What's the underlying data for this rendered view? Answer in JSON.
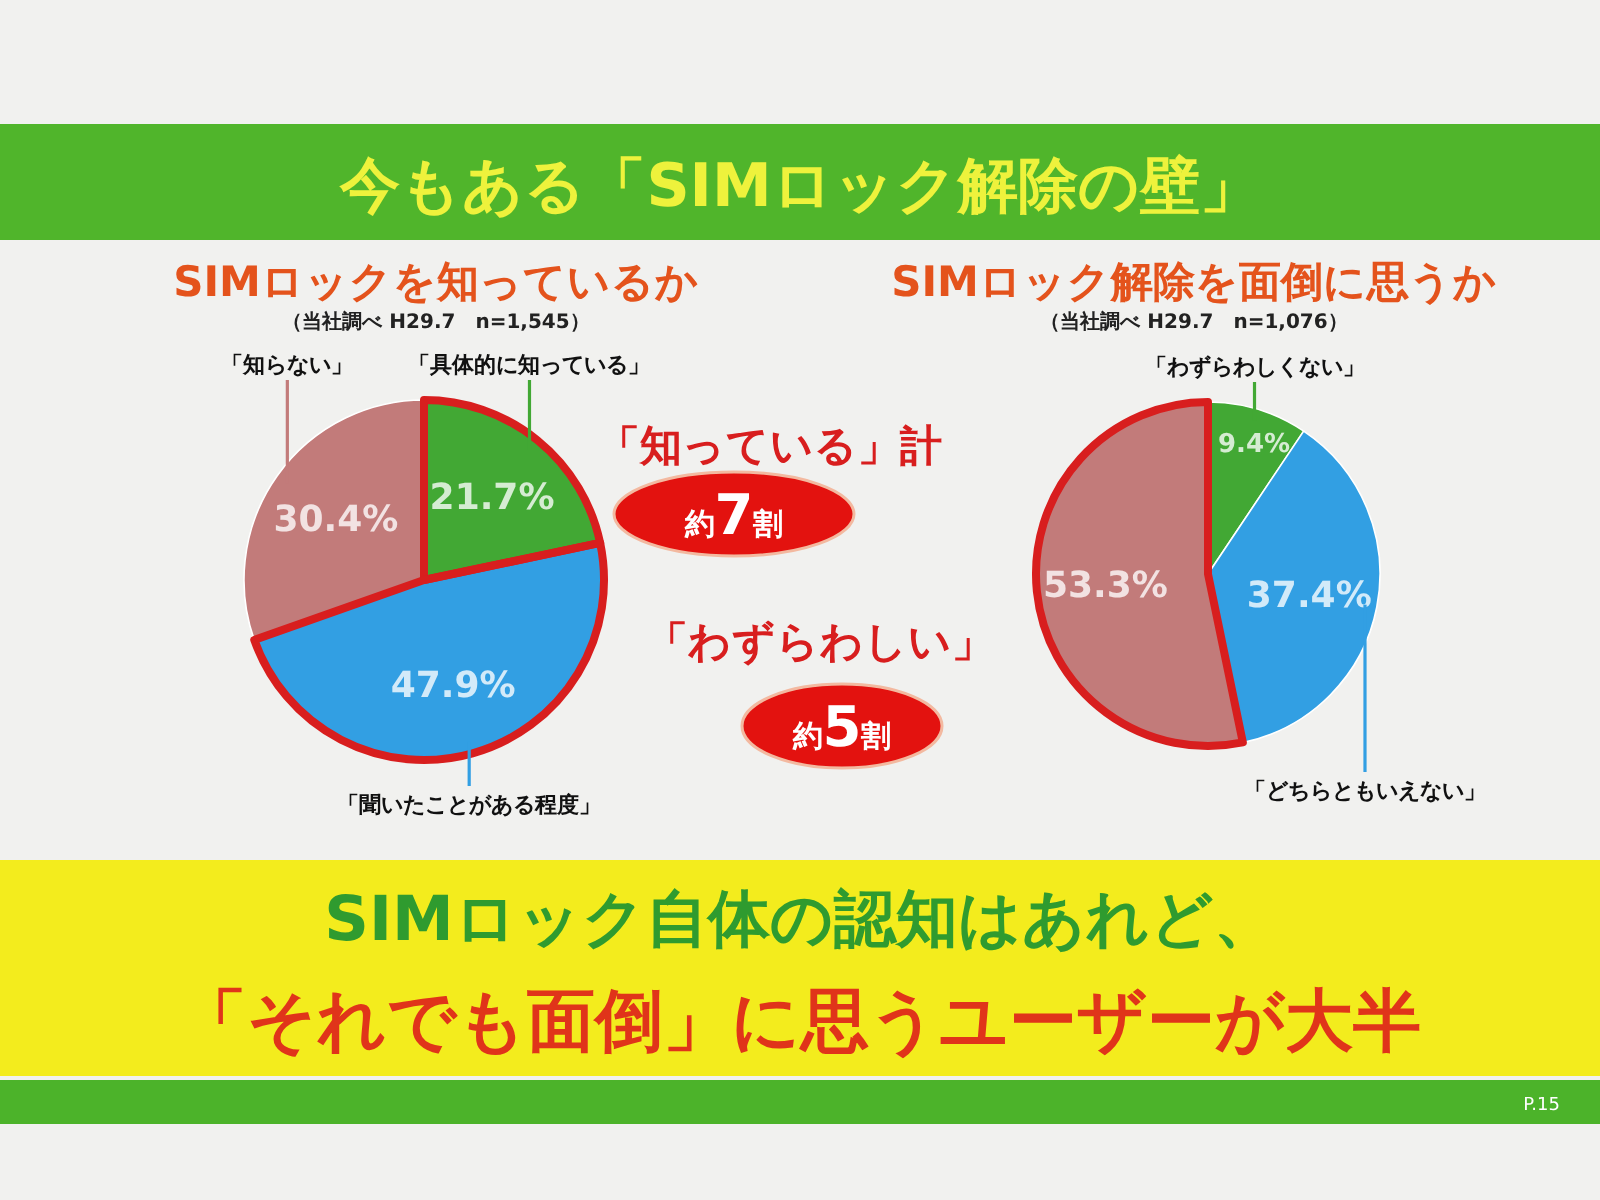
{
  "chart_data": [
    {
      "type": "other",
      "title": "今もある「SIMロック解除の壁」"
    },
    {
      "type": "pie",
      "title": "SIMロックを知っているか",
      "subtitle": "（当社調べ H29.7　n=1,545）",
      "categories": [
        "「具体的に知っている」",
        "「聞いたことがある程度」",
        "「知らない」"
      ],
      "values": [
        21.7,
        47.9,
        30.4
      ],
      "colors": [
        "#42a834",
        "#329fe3",
        "#c27b7a"
      ],
      "value_labels": [
        "21.7%",
        "47.9%",
        "30.4%"
      ],
      "annotations": [
        "「知っている」計",
        "約7割"
      ]
    },
    {
      "type": "pie",
      "title": "SIMロック解除を面倒に思うか",
      "subtitle": "（当社調べ H29.7　n=1,076）",
      "categories": [
        "「わずらわしくない」",
        "「どちらともいえない」",
        null
      ],
      "values": [
        9.4,
        37.4,
        53.3
      ],
      "colors": [
        "#42a834",
        "#329fe3",
        "#c27b7a"
      ],
      "value_labels": [
        "9.4%",
        "37.4%",
        "53.3%"
      ],
      "annotations": [
        "「わずらわしい」",
        "約5割"
      ]
    },
    {
      "type": "other",
      "annotations": [
        "SIMロック自体の認知はあれど、",
        "「それでも面倒」に思うユーザーが大半",
        "P.15"
      ]
    }
  ]
}
